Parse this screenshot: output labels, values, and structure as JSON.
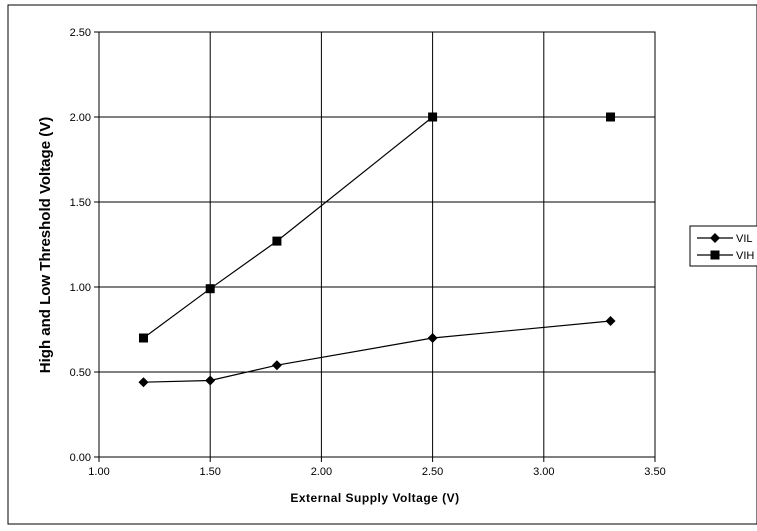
{
  "chart_data": {
    "type": "line",
    "title": "",
    "xlabel": "External Supply Voltage (V)",
    "ylabel": "High and Low Threshold Voltage (V)",
    "xlim": [
      1.0,
      3.5
    ],
    "ylim": [
      0.0,
      2.5
    ],
    "x_ticks": [
      "1.00",
      "1.50",
      "2.00",
      "2.50",
      "3.00",
      "3.50"
    ],
    "y_ticks": [
      "0.00",
      "0.50",
      "1.00",
      "1.50",
      "2.00",
      "2.50"
    ],
    "grid": true,
    "legend_position": "right",
    "series": [
      {
        "name": "VIL",
        "marker": "diamond",
        "color": "#000000",
        "points": [
          [
            1.2,
            0.44
          ],
          [
            1.5,
            0.45
          ],
          [
            1.8,
            0.54
          ],
          [
            2.5,
            0.7
          ],
          [
            3.3,
            0.8
          ]
        ],
        "line_through_last": true
      },
      {
        "name": "VIH",
        "marker": "square",
        "color": "#000000",
        "points": [
          [
            1.2,
            0.7
          ],
          [
            1.5,
            0.99
          ],
          [
            1.8,
            1.27
          ],
          [
            2.5,
            2.0
          ],
          [
            3.3,
            2.0
          ]
        ],
        "line_through_last": false
      }
    ]
  }
}
